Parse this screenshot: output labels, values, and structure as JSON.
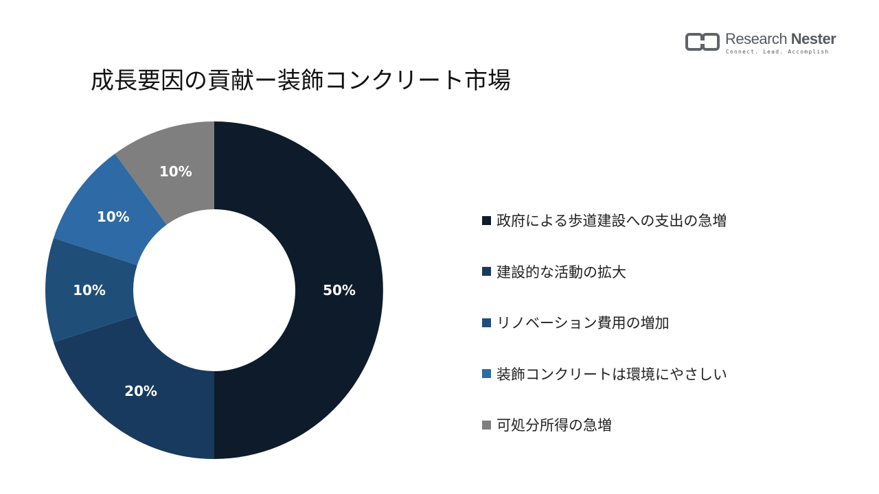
{
  "title": "成長要因の貢献ー装飾コンクリート市場",
  "logo": {
    "name_light": "Research ",
    "name_bold": "Nester",
    "tagline": "Connect. Lead. Accomplish",
    "icon": "research-nester-logo-mark"
  },
  "colors": {
    "series": [
      "#0d1b2a",
      "#173a5e",
      "#1f4e79",
      "#2d6aa6",
      "#7f7f7f"
    ]
  },
  "chart_data": {
    "type": "pie",
    "variant": "donut",
    "title": "",
    "categories": [
      "政府による歩道建設への支出の急増",
      "建設的な活動の拡大",
      "リノベーション費用の増加",
      "装飾コンクリートは環境にやさしい",
      "可処分所得の急増"
    ],
    "values": [
      50,
      20,
      10,
      10,
      10
    ],
    "value_labels": [
      "50%",
      "20%",
      "10%",
      "10%",
      "10%"
    ],
    "unit": "%",
    "legend_position": "right"
  }
}
